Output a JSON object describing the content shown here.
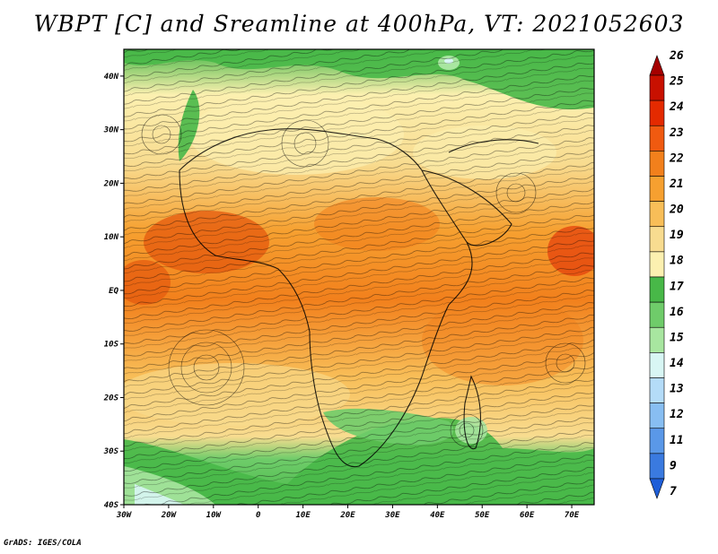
{
  "title": "WBPT [C] and Sreamline at 400hPa, VT: 2021052603",
  "credit": "GrADS: IGES/COLA",
  "map": {
    "lat_labels": [
      "40N",
      "30N",
      "20N",
      "10N",
      "EQ",
      "10S",
      "20S",
      "30S",
      "40S"
    ],
    "lon_labels": [
      "30W",
      "20W",
      "10W",
      "0",
      "10E",
      "20E",
      "30E",
      "40E",
      "50E",
      "60E",
      "70E"
    ],
    "lon_range": [
      -30,
      75
    ],
    "lat_range": [
      -40,
      45
    ]
  },
  "colorbar": {
    "levels": [
      "26",
      "25",
      "24",
      "23",
      "22",
      "21",
      "20",
      "19",
      "18",
      "17",
      "16",
      "15",
      "14",
      "13",
      "12",
      "11",
      "9",
      "7"
    ],
    "colors": {
      "top_arrow": "#a50000",
      "25": "#c81000",
      "24": "#e42a00",
      "23": "#f05a10",
      "22": "#f2801c",
      "21": "#f6a030",
      "20": "#f8be58",
      "19": "#f8dc90",
      "18": "#fcf0b0",
      "17": "#48b848",
      "16": "#6fcc6a",
      "15": "#a8e6a0",
      "14": "#d8f6f4",
      "13": "#b4dcf8",
      "12": "#88bef2",
      "11": "#5a98e8",
      "9": "#3a7ae0",
      "bottom_arrow": "#1e5ed8"
    }
  }
}
